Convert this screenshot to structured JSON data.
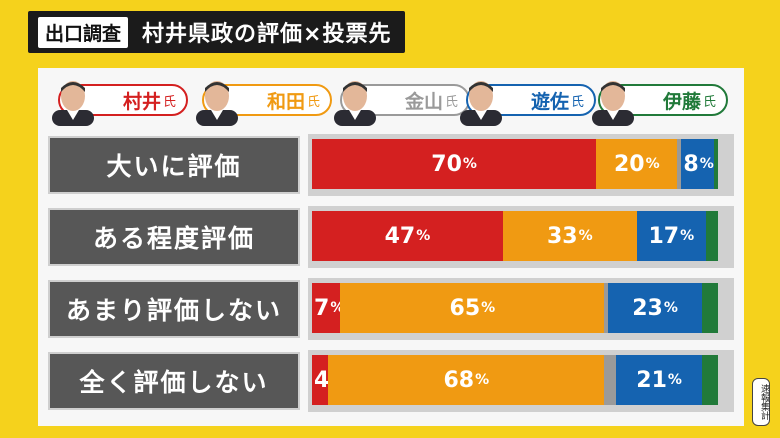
{
  "header": {
    "tag": "出口調査",
    "title": "村井県政の評価×投票先"
  },
  "candidates": [
    {
      "name": "村井",
      "suffix": "氏",
      "color": "#d42020",
      "icon": "portrait-icon"
    },
    {
      "name": "和田",
      "suffix": "氏",
      "color": "#f09a12",
      "icon": "portrait-icon"
    },
    {
      "name": "金山",
      "suffix": "氏",
      "color": "#9a9a9a",
      "icon": "portrait-icon"
    },
    {
      "name": "遊佐",
      "suffix": "氏",
      "color": "#1563b0",
      "icon": "portrait-icon"
    },
    {
      "name": "伊藤",
      "suffix": "氏",
      "color": "#217a3a",
      "icon": "portrait-icon"
    }
  ],
  "note": "速報集計",
  "chart_data": {
    "type": "bar",
    "orientation": "horizontal-stacked-100",
    "categories": [
      "大いに評価",
      "ある程度評価",
      "あまり評価しない",
      "全く評価しない"
    ],
    "series": [
      {
        "name": "村井",
        "color": "#d42020",
        "values": [
          70,
          47,
          7,
          4
        ]
      },
      {
        "name": "和田",
        "color": "#f09a12",
        "values": [
          20,
          33,
          65,
          68
        ]
      },
      {
        "name": "金山",
        "color": "#9a9a9a",
        "values": [
          1,
          0,
          1,
          3
        ]
      },
      {
        "name": "遊佐",
        "color": "#1563b0",
        "values": [
          8,
          17,
          23,
          21
        ]
      },
      {
        "name": "伊藤",
        "color": "#217a3a",
        "values": [
          1,
          3,
          4,
          4
        ]
      }
    ],
    "data_labels": [
      [
        "70",
        "20",
        "",
        "8",
        ""
      ],
      [
        "47",
        "33",
        "",
        "17",
        ""
      ],
      [
        "7",
        "65",
        "",
        "23",
        ""
      ],
      [
        "4",
        "68",
        "",
        "21",
        ""
      ]
    ],
    "unit": "%"
  }
}
